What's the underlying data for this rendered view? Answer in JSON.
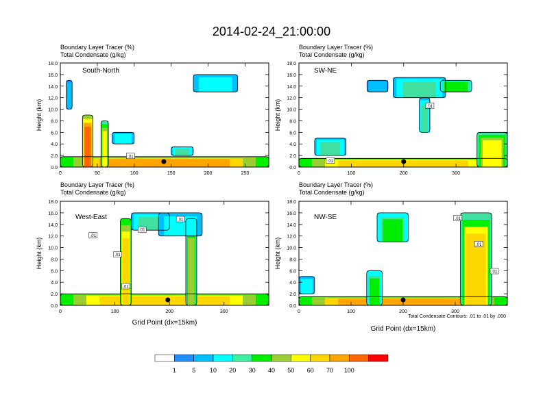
{
  "title": "2014-02-24_21:00:00",
  "label_line1": "Boundary Layer Tracer   (%)",
  "label_line2": "Total Condensate   (g/kg)",
  "ylabel": "Height (km)",
  "xlabel": "Grid Point (dx=15km)",
  "contour_note": "Total Condensate Contours: .01 to .01 by .000",
  "colors": {
    "levels": [
      "#ffffff",
      "#1e90ff",
      "#00bfff",
      "#00ffff",
      "#40e0a0",
      "#00ee00",
      "#9acd32",
      "#ffff00",
      "#ffd700",
      "#ffa500",
      "#ff6600",
      "#ff3300",
      "#ff0000"
    ],
    "contour": "#000000",
    "station": "#000000"
  },
  "colorbar": {
    "labels": [
      "1",
      "5",
      "10",
      "20",
      "30",
      "40",
      "50",
      "60",
      "70",
      "100"
    ],
    "colors": [
      "#ffffff",
      "#1e90ff",
      "#00bfff",
      "#00ffff",
      "#3cf0a0",
      "#00ee00",
      "#9acd32",
      "#ffff00",
      "#ffd700",
      "#ffa500",
      "#ff6600",
      "#ff0000"
    ]
  },
  "chart_data": [
    {
      "type": "heatmap",
      "name": "South-North",
      "xlim": [
        0,
        282
      ],
      "ylim": [
        0,
        18
      ],
      "xticks": [
        0,
        50,
        100,
        150,
        200,
        250
      ],
      "yticks": [
        "0.0",
        "2.0",
        "4.0",
        "6.0",
        "8.0",
        "10.0",
        "12.0",
        "14.0",
        "16.0",
        "18.0"
      ],
      "contour_labels": [
        {
          "text": ".01",
          "x": 95,
          "y": 1.8
        }
      ],
      "station_x": 140,
      "features": [
        {
          "x": 0,
          "w": 282,
          "z0": 0,
          "z1": 1.8,
          "i": 0.75
        },
        {
          "x": 30,
          "w": 14,
          "z0": 0,
          "z1": 9,
          "i": 0.85
        },
        {
          "x": 55,
          "w": 10,
          "z0": 0,
          "z1": 8,
          "i": 0.55
        },
        {
          "x": 8,
          "w": 8,
          "z0": 10,
          "z1": 15,
          "i": 0.2
        },
        {
          "x": 70,
          "w": 30,
          "z0": 4,
          "z1": 6,
          "i": 0.25
        },
        {
          "x": 180,
          "w": 60,
          "z0": 13,
          "z1": 16,
          "i": 0.25
        },
        {
          "x": 150,
          "w": 30,
          "z0": 2,
          "z1": 3.5,
          "i": 0.3
        }
      ]
    },
    {
      "type": "heatmap",
      "name": "SW-NE",
      "xlim": [
        0,
        398
      ],
      "ylim": [
        0,
        18
      ],
      "xticks": [
        0,
        100,
        200,
        300
      ],
      "yticks": [
        "0.0",
        "2.0",
        "4.0",
        "6.0",
        "8.0",
        "10.0",
        "12.0",
        "14.0",
        "16.0",
        "18.0"
      ],
      "contour_labels": [
        {
          "text": ".01",
          "x": 60,
          "y": 1.0
        },
        {
          "text": ".01",
          "x": 250,
          "y": 10.5
        }
      ],
      "station_x": 200,
      "features": [
        {
          "x": 0,
          "w": 398,
          "z0": 0,
          "z1": 1.5,
          "i": 0.7
        },
        {
          "x": 340,
          "w": 58,
          "z0": 0,
          "z1": 6,
          "i": 0.6
        },
        {
          "x": 30,
          "w": 60,
          "z0": 2,
          "z1": 5,
          "i": 0.3
        },
        {
          "x": 130,
          "w": 40,
          "z0": 13,
          "z1": 15,
          "i": 0.2
        },
        {
          "x": 180,
          "w": 100,
          "z0": 12,
          "z1": 15.5,
          "i": 0.3
        },
        {
          "x": 270,
          "w": 60,
          "z0": 13,
          "z1": 15,
          "i": 0.45
        },
        {
          "x": 230,
          "w": 20,
          "z0": 6,
          "z1": 12,
          "i": 0.3
        }
      ]
    },
    {
      "type": "heatmap",
      "name": "West-East",
      "xlim": [
        0,
        382
      ],
      "ylim": [
        0,
        18
      ],
      "xticks": [
        0,
        100,
        200,
        300
      ],
      "yticks": [
        "0.0",
        "2.0",
        "4.0",
        "6.0",
        "8.0",
        "10.0",
        "12.0",
        "14.0",
        "16.0",
        "18.0"
      ],
      "contour_labels": [
        {
          "text": ".01",
          "x": 60,
          "y": 12
        },
        {
          "text": ".01",
          "x": 105,
          "y": 8.7
        },
        {
          "text": ".01",
          "x": 150,
          "y": 13
        },
        {
          "text": ".01",
          "x": 220,
          "y": 14.8
        },
        {
          "text": ".01",
          "x": 120,
          "y": 3.2
        }
      ],
      "station_x": 197,
      "features": [
        {
          "x": 0,
          "w": 382,
          "z0": 0,
          "z1": 2,
          "i": 0.7
        },
        {
          "x": 110,
          "w": 20,
          "z0": 0,
          "z1": 15,
          "i": 0.7
        },
        {
          "x": 230,
          "w": 20,
          "z0": 0,
          "z1": 15,
          "i": 0.5
        },
        {
          "x": 130,
          "w": 70,
          "z0": 13,
          "z1": 16,
          "i": 0.3
        },
        {
          "x": 180,
          "w": 80,
          "z0": 12,
          "z1": 16,
          "i": 0.25
        }
      ]
    },
    {
      "type": "heatmap",
      "name": "NW-SE",
      "xlim": [
        0,
        400
      ],
      "ylim": [
        0,
        18
      ],
      "xticks": [
        0,
        100,
        200,
        300
      ],
      "yticks": [
        "0.0",
        "2.0",
        "4.0",
        "6.0",
        "8.0",
        "10.0",
        "12.0",
        "14.0",
        "16.0",
        "18.0"
      ],
      "contour_labels": [
        {
          "text": ".01",
          "x": 305,
          "y": 15
        },
        {
          "text": ".01",
          "x": 345,
          "y": 10.5
        },
        {
          "text": ".01",
          "x": 375,
          "y": 5.8
        }
      ],
      "station_x": 200,
      "features": [
        {
          "x": 0,
          "w": 400,
          "z0": 0,
          "z1": 1.5,
          "i": 0.75
        },
        {
          "x": 310,
          "w": 60,
          "z0": 0,
          "z1": 16,
          "i": 0.65
        },
        {
          "x": 130,
          "w": 30,
          "z0": 0,
          "z1": 6,
          "i": 0.4
        },
        {
          "x": 150,
          "w": 60,
          "z0": 11,
          "z1": 16,
          "i": 0.4
        },
        {
          "x": 0,
          "w": 30,
          "z0": 2,
          "z1": 5,
          "i": 0.25
        }
      ]
    }
  ]
}
